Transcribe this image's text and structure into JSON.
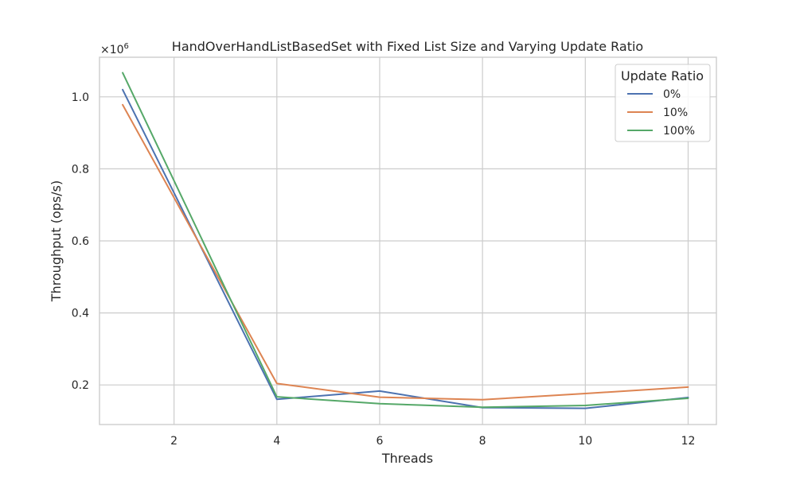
{
  "chart_data": {
    "type": "line",
    "title": "HandOverHandListBasedSet with Fixed List Size and Varying Update Ratio",
    "xlabel": "Threads",
    "ylabel": "Throughput (ops/s)",
    "y_offset_label_base": "×10",
    "y_offset_label_exp": "6",
    "x": [
      1,
      4,
      6,
      8,
      10,
      12
    ],
    "xlim": [
      0.55,
      12.55
    ],
    "ylim": [
      0.09,
      1.11
    ],
    "xticks": [
      2,
      4,
      6,
      8,
      10,
      12
    ],
    "xtick_labels": [
      "2",
      "4",
      "6",
      "8",
      "10",
      "12"
    ],
    "yticks": [
      0.2,
      0.4,
      0.6,
      0.8,
      1.0
    ],
    "ytick_labels": [
      "0.2",
      "0.4",
      "0.6",
      "0.8",
      "1.0"
    ],
    "grid": true,
    "legend": {
      "title": "Update Ratio",
      "placement": "top-right"
    },
    "series": [
      {
        "name": "0%",
        "color": "#4c72b0",
        "values": [
          1.02,
          0.16,
          0.183,
          0.137,
          0.135,
          0.165
        ]
      },
      {
        "name": "10%",
        "color": "#dd8452",
        "values": [
          0.978,
          0.204,
          0.166,
          0.159,
          0.176,
          0.194
        ]
      },
      {
        "name": "100%",
        "color": "#55a868",
        "values": [
          1.067,
          0.167,
          0.148,
          0.138,
          0.143,
          0.163
        ]
      }
    ]
  }
}
